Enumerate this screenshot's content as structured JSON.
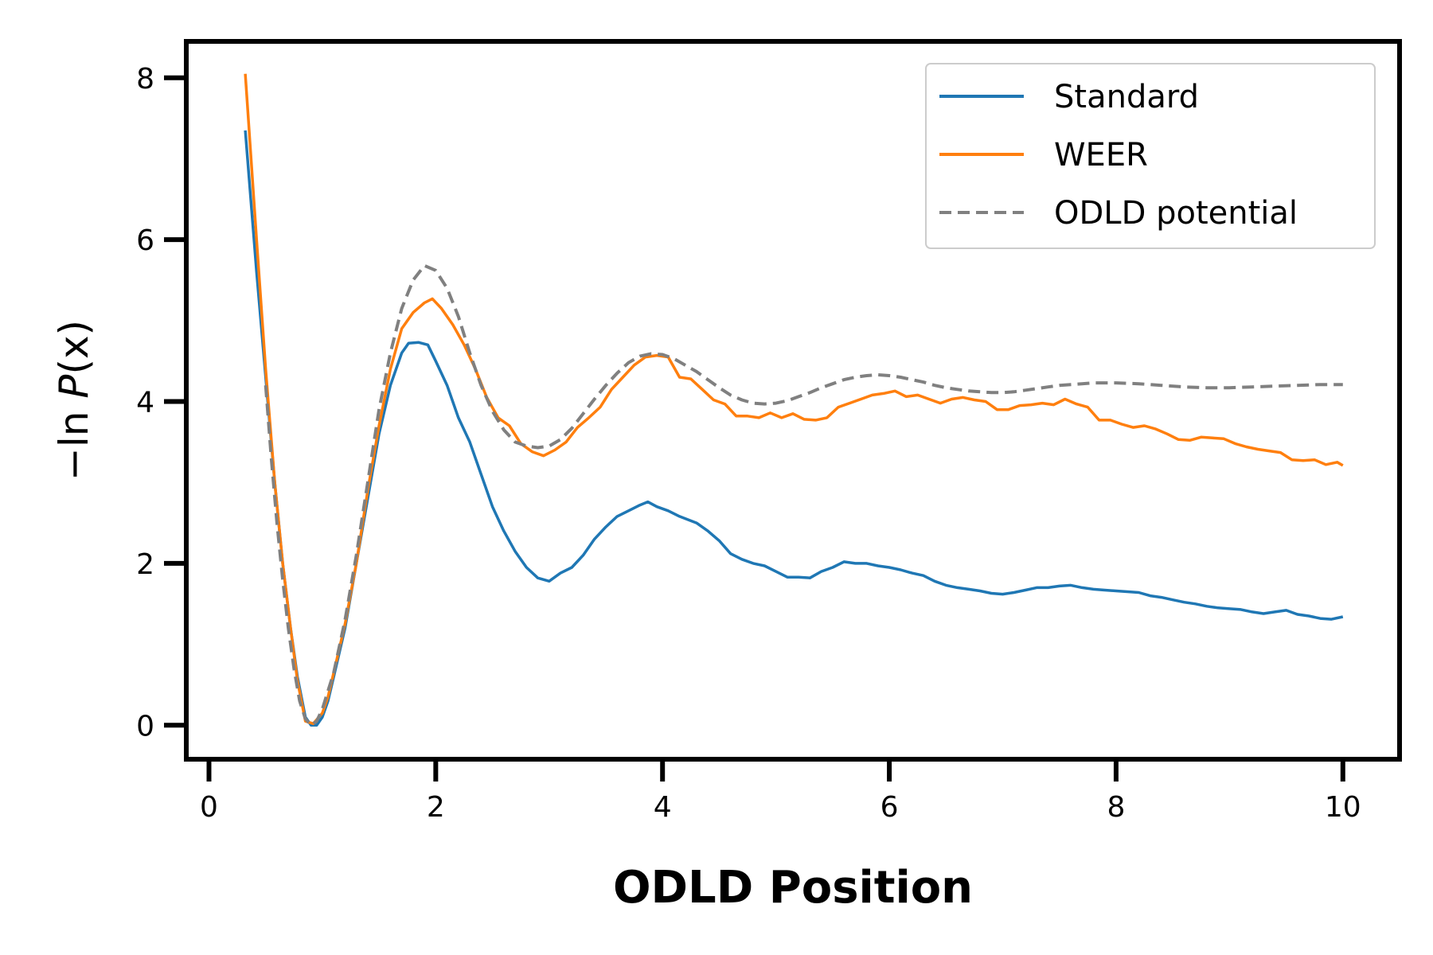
{
  "chart_data": {
    "type": "line",
    "xlabel": "ODLD Position",
    "ylabel_prefix": "−ln ",
    "ylabel_var": "P",
    "ylabel_arg": "(x)",
    "xlim": [
      -0.2,
      10.5
    ],
    "ylim": [
      -0.42,
      8.45
    ],
    "xticks": [
      0,
      2,
      4,
      6,
      8,
      10
    ],
    "yticks": [
      0,
      2,
      4,
      6,
      8
    ],
    "xtick_labels": [
      "0",
      "2",
      "4",
      "6",
      "8",
      "10"
    ],
    "ytick_labels": [
      "0",
      "2",
      "4",
      "6",
      "8"
    ],
    "grid": false,
    "legend_position": "top-right",
    "series": [
      {
        "name": "Standard",
        "color": "#1f77b4",
        "style": "solid",
        "points": [
          [
            0.32,
            7.35
          ],
          [
            0.42,
            5.6
          ],
          [
            0.5,
            4.3
          ],
          [
            0.58,
            3.0
          ],
          [
            0.65,
            2.0
          ],
          [
            0.72,
            1.2
          ],
          [
            0.78,
            0.6
          ],
          [
            0.85,
            0.1
          ],
          [
            0.9,
            0.0
          ],
          [
            0.95,
            0.0
          ],
          [
            1.0,
            0.1
          ],
          [
            1.05,
            0.3
          ],
          [
            1.1,
            0.6
          ],
          [
            1.2,
            1.2
          ],
          [
            1.3,
            2.0
          ],
          [
            1.4,
            2.8
          ],
          [
            1.5,
            3.6
          ],
          [
            1.6,
            4.2
          ],
          [
            1.7,
            4.6
          ],
          [
            1.76,
            4.72
          ],
          [
            1.85,
            4.73
          ],
          [
            1.93,
            4.7
          ],
          [
            2.0,
            4.5
          ],
          [
            2.1,
            4.2
          ],
          [
            2.2,
            3.8
          ],
          [
            2.3,
            3.5
          ],
          [
            2.4,
            3.1
          ],
          [
            2.5,
            2.7
          ],
          [
            2.6,
            2.4
          ],
          [
            2.7,
            2.15
          ],
          [
            2.8,
            1.95
          ],
          [
            2.9,
            1.82
          ],
          [
            3.0,
            1.78
          ],
          [
            3.1,
            1.88
          ],
          [
            3.2,
            1.95
          ],
          [
            3.3,
            2.1
          ],
          [
            3.4,
            2.3
          ],
          [
            3.5,
            2.45
          ],
          [
            3.6,
            2.58
          ],
          [
            3.7,
            2.65
          ],
          [
            3.8,
            2.72
          ],
          [
            3.87,
            2.76
          ],
          [
            3.95,
            2.7
          ],
          [
            4.05,
            2.65
          ],
          [
            4.15,
            2.58
          ],
          [
            4.3,
            2.5
          ],
          [
            4.4,
            2.4
          ],
          [
            4.5,
            2.28
          ],
          [
            4.6,
            2.12
          ],
          [
            4.7,
            2.05
          ],
          [
            4.8,
            2.0
          ],
          [
            4.9,
            1.97
          ],
          [
            5.0,
            1.9
          ],
          [
            5.1,
            1.83
          ],
          [
            5.2,
            1.83
          ],
          [
            5.3,
            1.82
          ],
          [
            5.4,
            1.9
          ],
          [
            5.5,
            1.95
          ],
          [
            5.6,
            2.02
          ],
          [
            5.7,
            2.0
          ],
          [
            5.8,
            2.0
          ],
          [
            5.9,
            1.97
          ],
          [
            6.0,
            1.95
          ],
          [
            6.1,
            1.92
          ],
          [
            6.2,
            1.88
          ],
          [
            6.3,
            1.85
          ],
          [
            6.4,
            1.78
          ],
          [
            6.5,
            1.73
          ],
          [
            6.6,
            1.7
          ],
          [
            6.7,
            1.68
          ],
          [
            6.8,
            1.66
          ],
          [
            6.9,
            1.63
          ],
          [
            7.0,
            1.62
          ],
          [
            7.1,
            1.64
          ],
          [
            7.2,
            1.67
          ],
          [
            7.3,
            1.7
          ],
          [
            7.4,
            1.7
          ],
          [
            7.5,
            1.72
          ],
          [
            7.6,
            1.73
          ],
          [
            7.7,
            1.7
          ],
          [
            7.8,
            1.68
          ],
          [
            7.9,
            1.67
          ],
          [
            8.0,
            1.66
          ],
          [
            8.1,
            1.65
          ],
          [
            8.2,
            1.64
          ],
          [
            8.3,
            1.6
          ],
          [
            8.4,
            1.58
          ],
          [
            8.5,
            1.55
          ],
          [
            8.6,
            1.52
          ],
          [
            8.7,
            1.5
          ],
          [
            8.8,
            1.47
          ],
          [
            8.9,
            1.45
          ],
          [
            9.0,
            1.44
          ],
          [
            9.1,
            1.43
          ],
          [
            9.2,
            1.4
          ],
          [
            9.3,
            1.38
          ],
          [
            9.4,
            1.4
          ],
          [
            9.5,
            1.42
          ],
          [
            9.6,
            1.37
          ],
          [
            9.7,
            1.35
          ],
          [
            9.8,
            1.32
          ],
          [
            9.9,
            1.31
          ],
          [
            10.0,
            1.34
          ]
        ]
      },
      {
        "name": "WEER",
        "color": "#ff7f0e",
        "style": "solid",
        "points": [
          [
            0.32,
            8.05
          ],
          [
            0.42,
            6.0
          ],
          [
            0.5,
            4.4
          ],
          [
            0.58,
            3.0
          ],
          [
            0.65,
            2.0
          ],
          [
            0.72,
            1.2
          ],
          [
            0.78,
            0.55
          ],
          [
            0.85,
            0.05
          ],
          [
            0.92,
            0.02
          ],
          [
            1.0,
            0.15
          ],
          [
            1.05,
            0.35
          ],
          [
            1.1,
            0.65
          ],
          [
            1.2,
            1.25
          ],
          [
            1.3,
            2.0
          ],
          [
            1.4,
            2.9
          ],
          [
            1.5,
            3.7
          ],
          [
            1.6,
            4.4
          ],
          [
            1.7,
            4.9
          ],
          [
            1.8,
            5.1
          ],
          [
            1.9,
            5.22
          ],
          [
            1.97,
            5.27
          ],
          [
            2.05,
            5.15
          ],
          [
            2.15,
            4.95
          ],
          [
            2.25,
            4.7
          ],
          [
            2.35,
            4.4
          ],
          [
            2.45,
            4.05
          ],
          [
            2.55,
            3.8
          ],
          [
            2.65,
            3.7
          ],
          [
            2.75,
            3.48
          ],
          [
            2.85,
            3.38
          ],
          [
            2.95,
            3.33
          ],
          [
            3.05,
            3.4
          ],
          [
            3.15,
            3.5
          ],
          [
            3.25,
            3.68
          ],
          [
            3.35,
            3.8
          ],
          [
            3.45,
            3.93
          ],
          [
            3.55,
            4.15
          ],
          [
            3.65,
            4.3
          ],
          [
            3.75,
            4.45
          ],
          [
            3.85,
            4.55
          ],
          [
            3.95,
            4.57
          ],
          [
            4.05,
            4.55
          ],
          [
            4.15,
            4.3
          ],
          [
            4.25,
            4.28
          ],
          [
            4.35,
            4.15
          ],
          [
            4.45,
            4.02
          ],
          [
            4.55,
            3.97
          ],
          [
            4.65,
            3.82
          ],
          [
            4.75,
            3.82
          ],
          [
            4.85,
            3.8
          ],
          [
            4.95,
            3.86
          ],
          [
            5.05,
            3.8
          ],
          [
            5.15,
            3.85
          ],
          [
            5.25,
            3.78
          ],
          [
            5.35,
            3.77
          ],
          [
            5.45,
            3.8
          ],
          [
            5.55,
            3.93
          ],
          [
            5.65,
            3.98
          ],
          [
            5.75,
            4.03
          ],
          [
            5.85,
            4.08
          ],
          [
            5.95,
            4.1
          ],
          [
            6.05,
            4.13
          ],
          [
            6.15,
            4.06
          ],
          [
            6.25,
            4.08
          ],
          [
            6.35,
            4.03
          ],
          [
            6.45,
            3.98
          ],
          [
            6.55,
            4.03
          ],
          [
            6.65,
            4.05
          ],
          [
            6.75,
            4.02
          ],
          [
            6.85,
            4.0
          ],
          [
            6.95,
            3.9
          ],
          [
            7.05,
            3.9
          ],
          [
            7.15,
            3.95
          ],
          [
            7.25,
            3.96
          ],
          [
            7.35,
            3.98
          ],
          [
            7.45,
            3.96
          ],
          [
            7.55,
            4.03
          ],
          [
            7.65,
            3.97
          ],
          [
            7.75,
            3.93
          ],
          [
            7.85,
            3.77
          ],
          [
            7.95,
            3.77
          ],
          [
            8.05,
            3.72
          ],
          [
            8.15,
            3.68
          ],
          [
            8.25,
            3.7
          ],
          [
            8.35,
            3.66
          ],
          [
            8.45,
            3.6
          ],
          [
            8.55,
            3.53
          ],
          [
            8.65,
            3.52
          ],
          [
            8.75,
            3.56
          ],
          [
            8.85,
            3.55
          ],
          [
            8.95,
            3.54
          ],
          [
            9.05,
            3.48
          ],
          [
            9.15,
            3.44
          ],
          [
            9.25,
            3.41
          ],
          [
            9.35,
            3.39
          ],
          [
            9.45,
            3.37
          ],
          [
            9.55,
            3.28
          ],
          [
            9.65,
            3.27
          ],
          [
            9.75,
            3.28
          ],
          [
            9.85,
            3.22
          ],
          [
            9.95,
            3.25
          ],
          [
            10.0,
            3.21
          ]
        ]
      },
      {
        "name": "ODLD potential",
        "color": "#808080",
        "style": "dashed",
        "points": [
          [
            0.5,
            4.2
          ],
          [
            0.55,
            3.3
          ],
          [
            0.6,
            2.5
          ],
          [
            0.65,
            1.8
          ],
          [
            0.7,
            1.2
          ],
          [
            0.75,
            0.7
          ],
          [
            0.8,
            0.3
          ],
          [
            0.85,
            0.08
          ],
          [
            0.9,
            0.0
          ],
          [
            0.95,
            0.05
          ],
          [
            1.0,
            0.2
          ],
          [
            1.1,
            0.65
          ],
          [
            1.2,
            1.3
          ],
          [
            1.3,
            2.1
          ],
          [
            1.4,
            3.0
          ],
          [
            1.5,
            3.9
          ],
          [
            1.6,
            4.6
          ],
          [
            1.7,
            5.15
          ],
          [
            1.8,
            5.5
          ],
          [
            1.9,
            5.68
          ],
          [
            2.0,
            5.62
          ],
          [
            2.1,
            5.4
          ],
          [
            2.2,
            5.05
          ],
          [
            2.3,
            4.6
          ],
          [
            2.4,
            4.2
          ],
          [
            2.5,
            3.88
          ],
          [
            2.6,
            3.65
          ],
          [
            2.7,
            3.5
          ],
          [
            2.8,
            3.45
          ],
          [
            2.9,
            3.43
          ],
          [
            3.0,
            3.45
          ],
          [
            3.1,
            3.53
          ],
          [
            3.2,
            3.67
          ],
          [
            3.3,
            3.85
          ],
          [
            3.4,
            4.03
          ],
          [
            3.5,
            4.2
          ],
          [
            3.6,
            4.35
          ],
          [
            3.7,
            4.48
          ],
          [
            3.8,
            4.56
          ],
          [
            3.9,
            4.59
          ],
          [
            4.0,
            4.58
          ],
          [
            4.1,
            4.53
          ],
          [
            4.2,
            4.45
          ],
          [
            4.3,
            4.37
          ],
          [
            4.4,
            4.27
          ],
          [
            4.5,
            4.17
          ],
          [
            4.6,
            4.08
          ],
          [
            4.7,
            4.02
          ],
          [
            4.8,
            3.98
          ],
          [
            4.9,
            3.97
          ],
          [
            5.0,
            3.98
          ],
          [
            5.1,
            4.01
          ],
          [
            5.2,
            4.06
          ],
          [
            5.3,
            4.11
          ],
          [
            5.4,
            4.17
          ],
          [
            5.5,
            4.22
          ],
          [
            5.6,
            4.27
          ],
          [
            5.7,
            4.3
          ],
          [
            5.8,
            4.32
          ],
          [
            5.9,
            4.33
          ],
          [
            6.0,
            4.32
          ],
          [
            6.1,
            4.3
          ],
          [
            6.2,
            4.27
          ],
          [
            6.3,
            4.24
          ],
          [
            6.4,
            4.2
          ],
          [
            6.5,
            4.17
          ],
          [
            6.6,
            4.15
          ],
          [
            6.7,
            4.13
          ],
          [
            6.8,
            4.12
          ],
          [
            6.9,
            4.11
          ],
          [
            7.0,
            4.11
          ],
          [
            7.1,
            4.12
          ],
          [
            7.2,
            4.14
          ],
          [
            7.3,
            4.16
          ],
          [
            7.4,
            4.18
          ],
          [
            7.5,
            4.2
          ],
          [
            7.6,
            4.21
          ],
          [
            7.7,
            4.22
          ],
          [
            7.8,
            4.23
          ],
          [
            7.9,
            4.23
          ],
          [
            8.0,
            4.23
          ],
          [
            8.2,
            4.22
          ],
          [
            8.4,
            4.2
          ],
          [
            8.6,
            4.18
          ],
          [
            8.8,
            4.17
          ],
          [
            9.0,
            4.17
          ],
          [
            9.2,
            4.18
          ],
          [
            9.4,
            4.19
          ],
          [
            9.6,
            4.2
          ],
          [
            9.8,
            4.21
          ],
          [
            10.0,
            4.21
          ]
        ]
      }
    ]
  }
}
